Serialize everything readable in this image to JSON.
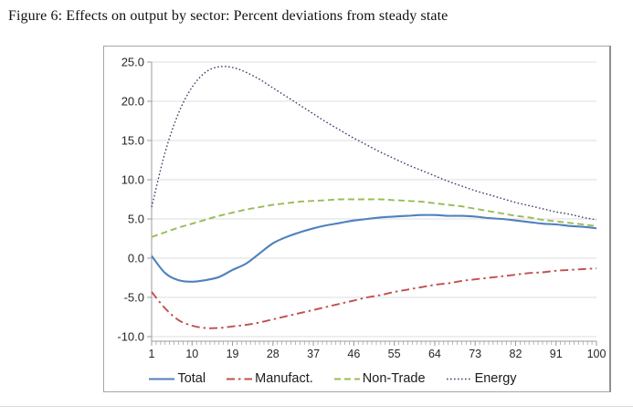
{
  "caption": "Figure 6: Effects on output by sector: Percent deviations from steady state",
  "chart_data": {
    "type": "line",
    "title": "",
    "xlabel": "",
    "ylabel": "",
    "xlim": [
      1,
      100
    ],
    "ylim": [
      -10,
      25
    ],
    "grid": true,
    "legend_position": "bottom",
    "axis_color": "#9b9b9b",
    "grid_color": "#dcdcdc",
    "tick_label_color": "#262626",
    "ytick_values": [
      25,
      20,
      15,
      10,
      5,
      0,
      -5,
      -10
    ],
    "ytick_labels": [
      "25.0",
      "20.0",
      "15.0",
      "10.0",
      "5.0",
      "0.0",
      "-5.0",
      "-10.0"
    ],
    "xticks": [
      1,
      10,
      19,
      28,
      37,
      46,
      55,
      64,
      73,
      82,
      91,
      100
    ],
    "x": [
      1,
      4,
      7,
      10,
      13,
      16,
      19,
      22,
      25,
      28,
      31,
      34,
      37,
      40,
      43,
      46,
      49,
      52,
      55,
      58,
      61,
      64,
      67,
      70,
      73,
      76,
      79,
      82,
      85,
      88,
      91,
      94,
      97,
      100
    ],
    "series": [
      {
        "name": "Total",
        "color": "#4F81BD",
        "style": "solid",
        "values": [
          0.3,
          -1.9,
          -2.8,
          -3.0,
          -2.8,
          -2.4,
          -1.5,
          -0.7,
          0.6,
          1.9,
          2.7,
          3.3,
          3.8,
          4.2,
          4.5,
          4.8,
          5.0,
          5.2,
          5.3,
          5.4,
          5.5,
          5.5,
          5.4,
          5.4,
          5.3,
          5.1,
          5.0,
          4.8,
          4.6,
          4.4,
          4.3,
          4.1,
          4.0,
          3.8
        ]
      },
      {
        "name": "Manufact.",
        "color": "#C0504D",
        "style": "dashdot",
        "values": [
          -4.3,
          -6.4,
          -7.9,
          -8.6,
          -8.9,
          -8.9,
          -8.7,
          -8.5,
          -8.2,
          -7.8,
          -7.4,
          -7.0,
          -6.6,
          -6.2,
          -5.8,
          -5.4,
          -5.0,
          -4.7,
          -4.3,
          -4.0,
          -3.7,
          -3.4,
          -3.2,
          -2.9,
          -2.7,
          -2.5,
          -2.3,
          -2.1,
          -1.9,
          -1.8,
          -1.6,
          -1.5,
          -1.4,
          -1.3
        ]
      },
      {
        "name": "Non-Trade",
        "color": "#9BBB59",
        "style": "dashed",
        "values": [
          2.7,
          3.3,
          3.9,
          4.4,
          4.9,
          5.4,
          5.8,
          6.2,
          6.5,
          6.8,
          7.0,
          7.2,
          7.3,
          7.4,
          7.5,
          7.5,
          7.5,
          7.5,
          7.4,
          7.3,
          7.2,
          7.0,
          6.8,
          6.6,
          6.3,
          6.0,
          5.7,
          5.4,
          5.2,
          4.9,
          4.7,
          4.5,
          4.3,
          4.1
        ]
      },
      {
        "name": "Energy",
        "color": "#3E3E6E",
        "style": "dotted",
        "values": [
          6.5,
          13.5,
          18.5,
          21.8,
          23.7,
          24.4,
          24.3,
          23.7,
          22.8,
          21.7,
          20.6,
          19.5,
          18.4,
          17.3,
          16.3,
          15.3,
          14.4,
          13.5,
          12.7,
          11.9,
          11.2,
          10.5,
          9.8,
          9.2,
          8.6,
          8.1,
          7.6,
          7.1,
          6.7,
          6.3,
          5.9,
          5.6,
          5.2,
          4.9
        ]
      }
    ]
  }
}
